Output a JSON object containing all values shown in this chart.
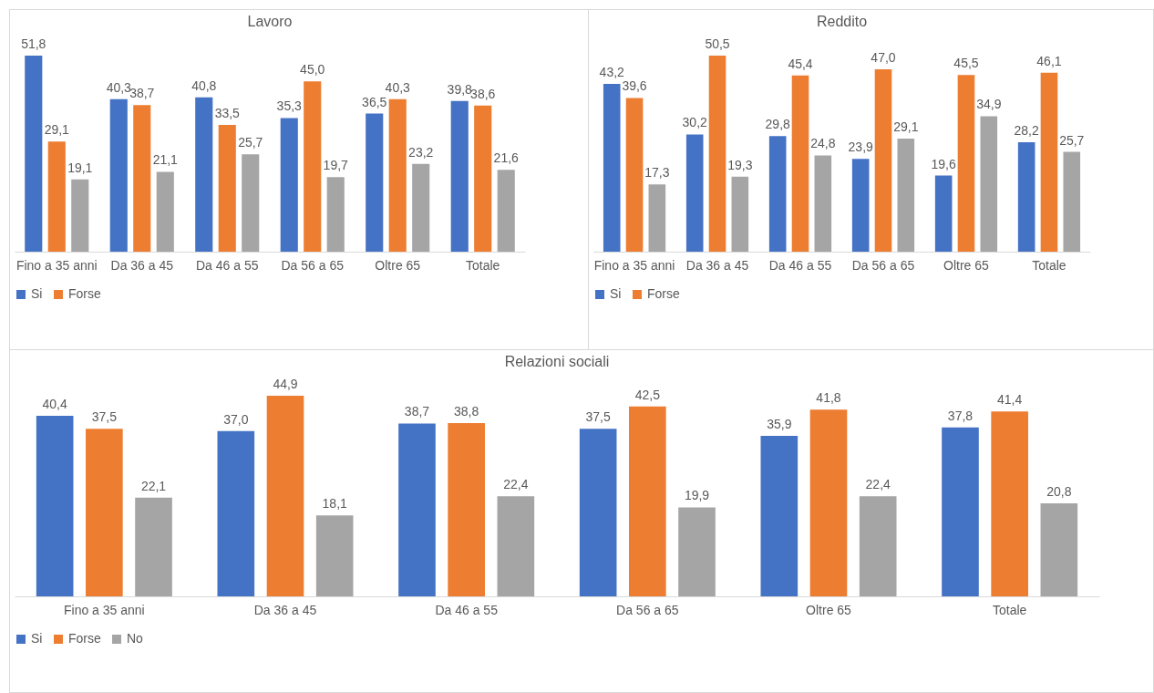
{
  "chart_data": [
    {
      "type": "bar",
      "title": "Lavoro",
      "categories": [
        "Fino a 35 anni",
        "Da 36 a 45",
        "Da 46 a 55",
        "Da 56 a 65",
        "Oltre 65",
        "Totale"
      ],
      "legend": "bottom",
      "grid": false,
      "series": [
        {
          "name": "Si",
          "color": "#4472c4",
          "values": [
            51.8,
            40.3,
            40.8,
            35.3,
            36.5,
            39.8
          ],
          "value_labels": [
            "51,8",
            "40,3",
            "40,8",
            "35,3",
            "36,5",
            "39,8"
          ]
        },
        {
          "name": "Forse",
          "color": "#ed7d31",
          "values": [
            29.1,
            38.7,
            33.5,
            45.0,
            40.3,
            38.6
          ],
          "value_labels": [
            "29,1",
            "38,7",
            "33,5",
            "45,0",
            "40,3",
            "38,6"
          ]
        },
        {
          "color": "#a5a5a5",
          "values": [
            19.1,
            21.1,
            25.7,
            19.7,
            23.2,
            21.6
          ],
          "value_labels": [
            "19,1",
            "21,1",
            "25,7",
            "19,7",
            "23,2",
            "21,6"
          ]
        }
      ]
    },
    {
      "type": "bar",
      "title": "Reddito",
      "categories": [
        "Fino a 35 anni",
        "Da 36 a 45",
        "Da 46 a 55",
        "Da 56 a 65",
        "Oltre 65",
        "Totale"
      ],
      "legend": "bottom",
      "grid": false,
      "series": [
        {
          "name": "Si",
          "color": "#4472c4",
          "values": [
            43.2,
            30.2,
            29.8,
            23.9,
            19.6,
            28.2
          ],
          "value_labels": [
            "43,2",
            "30,2",
            "29,8",
            "23,9",
            "19,6",
            "28,2"
          ]
        },
        {
          "name": "Forse",
          "color": "#ed7d31",
          "values": [
            39.6,
            50.5,
            45.4,
            47.0,
            45.5,
            46.1
          ],
          "value_labels": [
            "39,6",
            "50,5",
            "45,4",
            "47,0",
            "45,5",
            "46,1"
          ]
        },
        {
          "color": "#a5a5a5",
          "values": [
            17.3,
            19.3,
            24.8,
            29.1,
            34.9,
            25.7
          ],
          "value_labels": [
            "17,3",
            "19,3",
            "24,8",
            "29,1",
            "34,9",
            "25,7"
          ]
        }
      ]
    },
    {
      "type": "bar",
      "title": "Relazioni sociali",
      "categories": [
        "Fino a 35 anni",
        "Da 36 a 45",
        "Da 46 a 55",
        "Da 56 a 65",
        "Oltre 65",
        "Totale"
      ],
      "legend": "bottom",
      "grid": false,
      "series": [
        {
          "name": "Si",
          "color": "#4472c4",
          "values": [
            40.4,
            37.0,
            38.7,
            37.5,
            35.9,
            37.8
          ],
          "value_labels": [
            "40,4",
            "37,0",
            "38,7",
            "37,5",
            "35,9",
            "37,8"
          ]
        },
        {
          "name": "Forse",
          "color": "#ed7d31",
          "values": [
            37.5,
            44.9,
            38.8,
            42.5,
            41.8,
            41.4
          ],
          "value_labels": [
            "37,5",
            "44,9",
            "38,8",
            "42,5",
            "41,8",
            "41,4"
          ]
        },
        {
          "name": "No",
          "color": "#a5a5a5",
          "values": [
            22.1,
            18.1,
            22.4,
            19.9,
            22.4,
            20.8
          ],
          "value_labels": [
            "22,1",
            "18,1",
            "22,4",
            "19,9",
            "22,4",
            "20,8"
          ]
        }
      ]
    }
  ]
}
